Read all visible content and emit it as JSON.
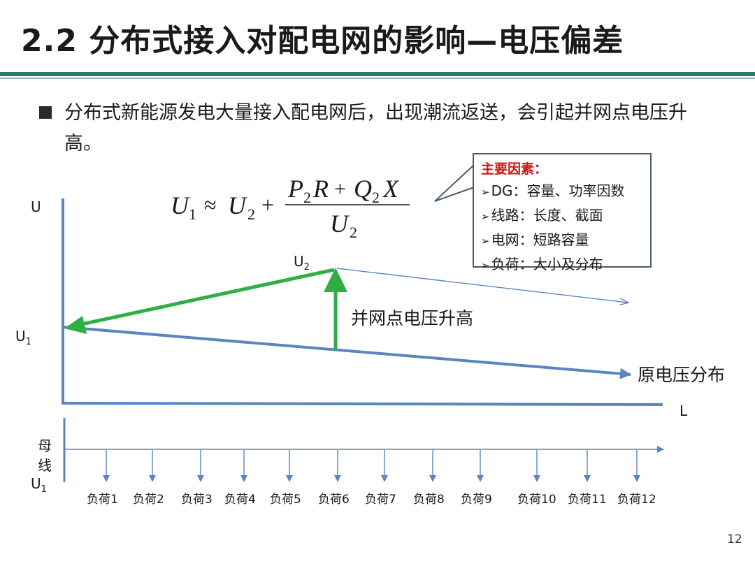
{
  "title": "2.2  分布式接入对配电网的影响—电压偏差",
  "bullet": "分布式新能源发电大量接入配电网后，出现潮流返送，会引起并网点电压升高。",
  "factors": {
    "title": "主要因素：",
    "items": [
      "DG：容量、功率因数",
      "线路：长度、截面",
      "电网：短路容量",
      "负荷：大小及分布"
    ]
  },
  "formula": {
    "lhs": "U",
    "lhs_sub": "1",
    "rel": "≈",
    "u2": "U",
    "u2_sub": "2",
    "plus": "+",
    "num_p": "P",
    "num_p_sub": "2",
    "num_r": "R",
    "num_plus": "+",
    "num_q": "Q",
    "num_q_sub": "2",
    "num_x": "X",
    "den": "U",
    "den_sub": "2"
  },
  "axis": {
    "y": "U",
    "x": "L"
  },
  "labels": {
    "u1": "U",
    "u1_sub": "1",
    "u2": "U",
    "u2_sub": "2",
    "rise": "并网点电压升高",
    "original": "原电压分布",
    "bus_1": "母",
    "bus_2": "线",
    "bus_u1": "U",
    "bus_u1_sub": "1"
  },
  "loads": [
    "负荷1",
    "负荷2",
    "负荷3",
    "负荷4",
    "负荷5",
    "负荷6",
    "负荷7",
    "负荷8",
    "负荷9",
    "负荷10",
    "负荷11",
    "负荷12"
  ],
  "page_number": "12",
  "colors": {
    "axis": "#5b85bf",
    "green": "#2fae46",
    "title_rule": "#2f7a6f",
    "factor_title": "#d01515"
  }
}
